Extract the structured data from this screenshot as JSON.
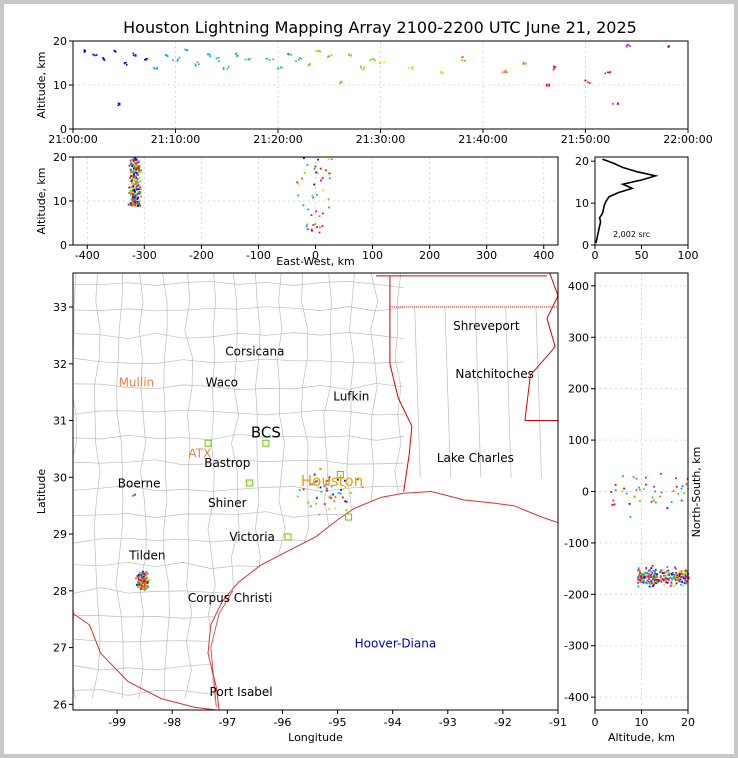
{
  "figure": {
    "title": "Houston Lightning Mapping Array 2100-2200 UTC June 21, 2025"
  },
  "colors": {
    "frame": "#c8c8c8",
    "background": "#ffffff",
    "county_lines": "#bdbdbd",
    "coastline": "#e03030",
    "state_border": "#dd0000",
    "text": "#000000",
    "orange_label": "#f08040",
    "blue_label": "#0000cc",
    "station_marker": "#66cc00"
  },
  "chart_data": [
    {
      "id": "time_altitude",
      "type": "scatter",
      "title": "Houston Lightning Mapping Array 2100-2200 UTC June 21, 2025",
      "ylabel": "Altitude, km",
      "x_ticks": [
        "21:00:00",
        "21:10:00",
        "21:20:00",
        "21:30:00",
        "21:40:00",
        "21:50:00",
        "22:00:00"
      ],
      "y_ticks": [
        0,
        10,
        20
      ],
      "xlim": [
        "21:00:00",
        "22:00:00"
      ],
      "ylim": [
        0,
        20
      ],
      "grid": true,
      "points": [
        {
          "t": "21:01:00",
          "alt": 18
        },
        {
          "t": "21:02:00",
          "alt": 17
        },
        {
          "t": "21:03:00",
          "alt": 16
        },
        {
          "t": "21:04:00",
          "alt": 18
        },
        {
          "t": "21:04:30",
          "alt": 6
        },
        {
          "t": "21:05:00",
          "alt": 15
        },
        {
          "t": "21:06:00",
          "alt": 17
        },
        {
          "t": "21:07:00",
          "alt": 16
        },
        {
          "t": "21:08:00",
          "alt": 14
        },
        {
          "t": "21:09:00",
          "alt": 17
        },
        {
          "t": "21:10:00",
          "alt": 16
        },
        {
          "t": "21:11:00",
          "alt": 18
        },
        {
          "t": "21:12:00",
          "alt": 15
        },
        {
          "t": "21:13:00",
          "alt": 17
        },
        {
          "t": "21:14:00",
          "alt": 16
        },
        {
          "t": "21:15:00",
          "alt": 14
        },
        {
          "t": "21:16:00",
          "alt": 17
        },
        {
          "t": "21:17:00",
          "alt": 16
        },
        {
          "t": "21:19:00",
          "alt": 16
        },
        {
          "t": "21:20:00",
          "alt": 14
        },
        {
          "t": "21:21:00",
          "alt": 17
        },
        {
          "t": "21:22:00",
          "alt": 16
        },
        {
          "t": "21:23:00",
          "alt": 15
        },
        {
          "t": "21:24:00",
          "alt": 18
        },
        {
          "t": "21:25:00",
          "alt": 17
        },
        {
          "t": "21:26:00",
          "alt": 11
        },
        {
          "t": "21:27:00",
          "alt": 17
        },
        {
          "t": "21:28:00",
          "alt": 14
        },
        {
          "t": "21:29:00",
          "alt": 16
        },
        {
          "t": "21:30:00",
          "alt": 15
        },
        {
          "t": "21:33:00",
          "alt": 14
        },
        {
          "t": "21:36:00",
          "alt": 13
        },
        {
          "t": "21:38:00",
          "alt": 16
        },
        {
          "t": "21:42:00",
          "alt": 13
        },
        {
          "t": "21:44:00",
          "alt": 15
        },
        {
          "t": "21:46:00",
          "alt": 10
        },
        {
          "t": "21:47:00",
          "alt": 14
        },
        {
          "t": "21:50:00",
          "alt": 11
        },
        {
          "t": "21:52:00",
          "alt": 13
        },
        {
          "t": "21:53:00",
          "alt": 6
        },
        {
          "t": "21:54:00",
          "alt": 19
        },
        {
          "t": "21:58:00",
          "alt": 19
        }
      ]
    },
    {
      "id": "east_west_altitude",
      "type": "scatter",
      "xlabel": "East-West, km",
      "ylabel": "Altitude, km",
      "x_ticks": [
        -400,
        -300,
        -200,
        -100,
        0,
        100,
        200,
        300,
        400
      ],
      "y_ticks": [
        0,
        10,
        20
      ],
      "xlim": [
        -425,
        425
      ],
      "ylim": [
        0,
        20
      ],
      "grid": true,
      "clusters": [
        {
          "x_center": -318,
          "x_spread": 8,
          "alt_min": 9,
          "alt_max": 20,
          "count": 260
        },
        {
          "x_center": -5,
          "x_spread": 30,
          "alt_min": 3,
          "alt_max": 20,
          "count": 45
        }
      ]
    },
    {
      "id": "altitude_histogram",
      "type": "line",
      "x_ticks": [
        0,
        50,
        100
      ],
      "y_ticks": [
        0,
        10,
        20
      ],
      "xlim": [
        0,
        100
      ],
      "ylim": [
        0,
        21
      ],
      "annotation": "2,002 src",
      "profile": [
        {
          "alt": 0.5,
          "count": 1
        },
        {
          "alt": 1.5,
          "count": 2
        },
        {
          "alt": 2.5,
          "count": 3
        },
        {
          "alt": 3.5,
          "count": 4
        },
        {
          "alt": 4.5,
          "count": 5
        },
        {
          "alt": 5.5,
          "count": 6
        },
        {
          "alt": 6.5,
          "count": 5
        },
        {
          "alt": 7.5,
          "count": 8
        },
        {
          "alt": 8.5,
          "count": 9
        },
        {
          "alt": 9.5,
          "count": 10
        },
        {
          "alt": 10.5,
          "count": 12
        },
        {
          "alt": 11.5,
          "count": 15
        },
        {
          "alt": 12.5,
          "count": 25
        },
        {
          "alt": 13.5,
          "count": 40
        },
        {
          "alt": 14.5,
          "count": 30
        },
        {
          "alt": 15.5,
          "count": 50
        },
        {
          "alt": 16.5,
          "count": 65
        },
        {
          "alt": 17.5,
          "count": 45
        },
        {
          "alt": 18.5,
          "count": 30
        },
        {
          "alt": 19.5,
          "count": 20
        },
        {
          "alt": 20.5,
          "count": 8
        }
      ]
    },
    {
      "id": "plan_view_map",
      "type": "scatter",
      "xlabel": "Longitude",
      "ylabel": "Latitude",
      "x_ticks": [
        -99,
        -98,
        -97,
        -96,
        -95,
        -94,
        -93,
        -92,
        -91
      ],
      "y_ticks": [
        26,
        27,
        28,
        29,
        30,
        31,
        32,
        33
      ],
      "xlim": [
        -99.8,
        -91.0
      ],
      "ylim": [
        25.9,
        33.6
      ],
      "clusters": [
        {
          "lon": -98.55,
          "lat": 28.2,
          "spread_lon": 0.08,
          "spread_lat": 0.12,
          "count": 230
        },
        {
          "lon": -95.2,
          "lat": 29.75,
          "spread_lon": 0.5,
          "spread_lat": 0.35,
          "count": 55
        },
        {
          "lon": -98.7,
          "lat": 29.7,
          "spread_lon": 0.05,
          "spread_lat": 0.05,
          "count": 3
        }
      ],
      "stations": [
        {
          "lon": -97.35,
          "lat": 30.6
        },
        {
          "lon": -96.3,
          "lat": 30.6
        },
        {
          "lon": -94.95,
          "lat": 30.05
        },
        {
          "lon": -94.8,
          "lat": 29.3
        },
        {
          "lon": -95.9,
          "lat": 28.95
        },
        {
          "lon": -96.6,
          "lat": 29.9
        }
      ],
      "labels": [
        {
          "text": "Shreveport",
          "lon": -92.3,
          "lat": 32.6,
          "color": "#000000"
        },
        {
          "text": "Corsicana",
          "lon": -96.5,
          "lat": 32.15,
          "color": "#000000"
        },
        {
          "text": "Natchitoches",
          "lon": -92.15,
          "lat": 31.75,
          "color": "#000000"
        },
        {
          "text": "Mullin",
          "lon": -98.65,
          "lat": 31.6,
          "color": "#f08040"
        },
        {
          "text": "Waco",
          "lon": -97.1,
          "lat": 31.6,
          "color": "#000000"
        },
        {
          "text": "Lufkin",
          "lon": -94.75,
          "lat": 31.35,
          "color": "#000000"
        },
        {
          "text": "BCS",
          "lon": -96.3,
          "lat": 30.7,
          "color": "#000000",
          "size": "large"
        },
        {
          "text": "ATX",
          "lon": -97.5,
          "lat": 30.35,
          "color": "#f08040"
        },
        {
          "text": "Bastrop",
          "lon": -97.0,
          "lat": 30.18,
          "color": "#000000"
        },
        {
          "text": "Lake Charles",
          "lon": -92.5,
          "lat": 30.27,
          "color": "#000000"
        },
        {
          "text": "Houston",
          "lon": -95.1,
          "lat": 29.85,
          "color": "#f0a000",
          "size": "large"
        },
        {
          "text": "Boerne",
          "lon": -98.6,
          "lat": 29.82,
          "color": "#000000"
        },
        {
          "text": "Shiner",
          "lon": -97.0,
          "lat": 29.48,
          "color": "#000000"
        },
        {
          "text": "Victoria",
          "lon": -96.55,
          "lat": 28.88,
          "color": "#000000"
        },
        {
          "text": "Tilden",
          "lon": -98.45,
          "lat": 28.55,
          "color": "#000000"
        },
        {
          "text": "Corpus Christi",
          "lon": -96.95,
          "lat": 27.8,
          "color": "#000000"
        },
        {
          "text": "Hoover-Diana",
          "lon": -93.95,
          "lat": 27.0,
          "color": "#0000cc"
        },
        {
          "text": "Port Isabel",
          "lon": -96.75,
          "lat": 26.15,
          "color": "#000000"
        }
      ]
    },
    {
      "id": "altitude_north_south",
      "type": "scatter",
      "xlabel": "Altitude, km",
      "ylabel": "North-South, km",
      "x_ticks": [
        0,
        10,
        20
      ],
      "y_ticks": [
        -400,
        -300,
        -200,
        -100,
        0,
        100,
        200,
        300,
        400
      ],
      "xlim": [
        0,
        20
      ],
      "ylim": [
        -425,
        425
      ],
      "clusters": [
        {
          "ns_center": -165,
          "ns_spread": 14,
          "alt_min": 9,
          "alt_max": 20,
          "count": 260
        },
        {
          "ns_center": 0,
          "ns_spread": 40,
          "alt_min": 3,
          "alt_max": 20,
          "count": 45
        }
      ]
    }
  ]
}
